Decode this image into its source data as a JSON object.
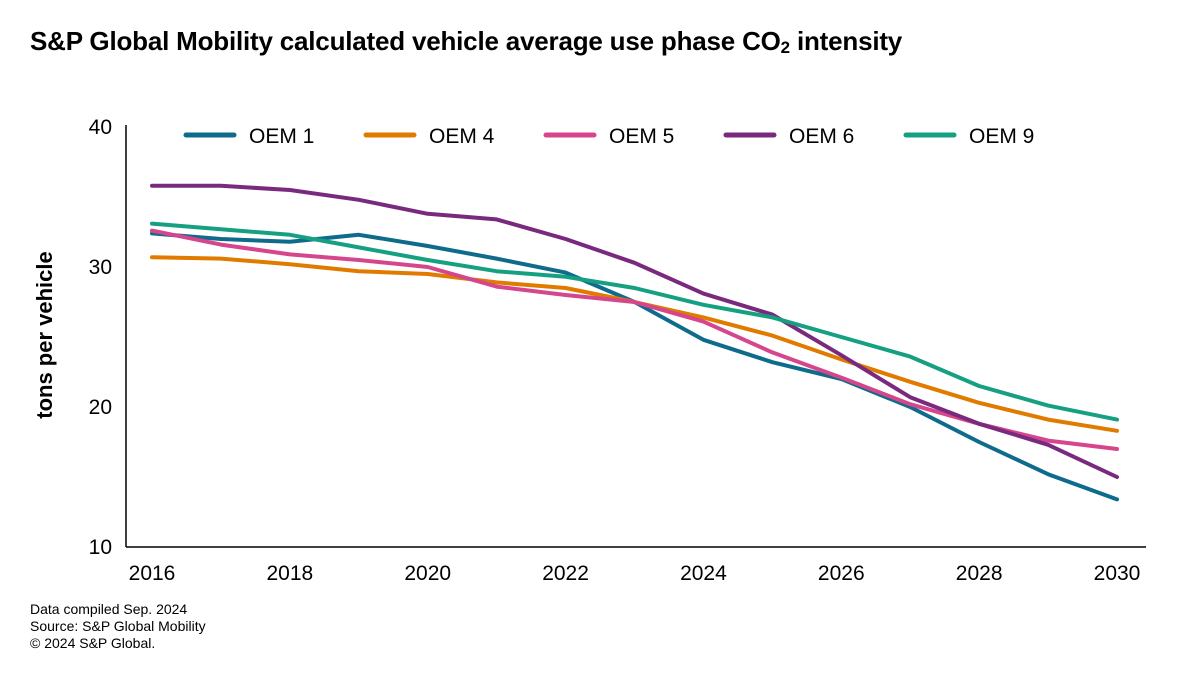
{
  "title_main": "S&P Global Mobility calculated vehicle average use phase CO",
  "title_sub": "2",
  "title_tail": " intensity",
  "footer": {
    "line1": "Data compiled Sep. 2024",
    "line2": "Source: S&P Global Mobility",
    "line3": "© 2024 S&P Global."
  },
  "chart_data": {
    "type": "line",
    "title": "S&P Global Mobility calculated vehicle average use phase CO₂ intensity",
    "xlabel": "",
    "ylabel": "tons per vehicle",
    "x": [
      2016,
      2017,
      2018,
      2019,
      2020,
      2021,
      2022,
      2023,
      2024,
      2025,
      2026,
      2027,
      2028,
      2029,
      2030
    ],
    "x_ticks": [
      "2016",
      "2018",
      "2020",
      "2022",
      "2024",
      "2026",
      "2028",
      "2030"
    ],
    "y_ticks": [
      "10",
      "20",
      "30",
      "40"
    ],
    "xlim": [
      2016,
      2030
    ],
    "ylim": [
      10,
      40
    ],
    "grid": false,
    "legend_position": "top",
    "series": [
      {
        "name": "OEM 1",
        "color": "#0e6b8c",
        "values": [
          32.4,
          32.0,
          31.8,
          32.3,
          31.5,
          30.6,
          29.6,
          27.5,
          24.8,
          23.2,
          22.0,
          20.0,
          17.5,
          15.2,
          13.4
        ]
      },
      {
        "name": "OEM 4",
        "color": "#e07b00",
        "values": [
          30.7,
          30.6,
          30.2,
          29.7,
          29.5,
          28.9,
          28.5,
          27.5,
          26.4,
          25.1,
          23.4,
          21.8,
          20.3,
          19.1,
          18.3
        ]
      },
      {
        "name": "OEM 5",
        "color": "#d6468c",
        "values": [
          32.6,
          31.6,
          30.9,
          30.5,
          30.0,
          28.6,
          28.0,
          27.5,
          26.1,
          23.9,
          22.1,
          20.2,
          18.8,
          17.6,
          17.0
        ]
      },
      {
        "name": "OEM 6",
        "color": "#7a2a7e",
        "values": [
          35.8,
          35.8,
          35.5,
          34.8,
          33.8,
          33.4,
          32.0,
          30.3,
          28.1,
          26.6,
          23.7,
          20.7,
          18.8,
          17.3,
          15.0
        ]
      },
      {
        "name": "OEM 9",
        "color": "#16a082",
        "values": [
          33.1,
          32.7,
          32.3,
          31.4,
          30.5,
          29.7,
          29.3,
          28.5,
          27.3,
          26.4,
          25.0,
          23.6,
          21.5,
          20.1,
          19.1
        ]
      }
    ]
  }
}
